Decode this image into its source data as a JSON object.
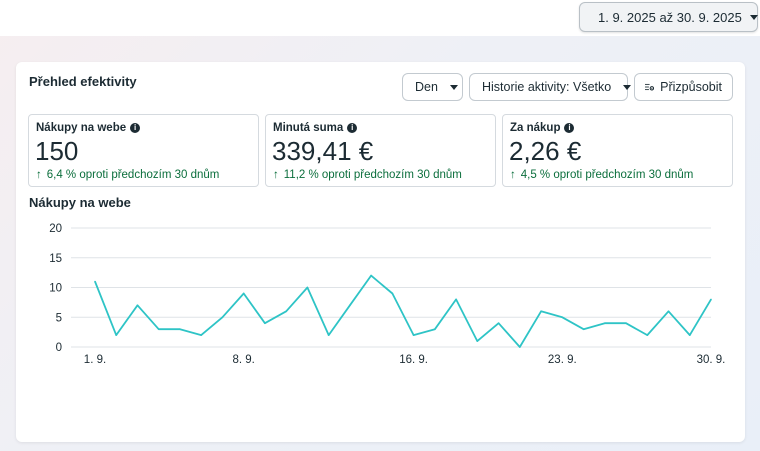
{
  "date_range": {
    "label": "1. 9. 2025 až 30. 9. 2025"
  },
  "panel": {
    "title": "Přehled efektivity",
    "granularity": "Den",
    "history_filter": "Historie aktivity: Všetko",
    "customize_label": "Přizpůsobit"
  },
  "metrics": [
    {
      "label": "Nákupy na webe",
      "value": "150",
      "delta": "6,4 % oproti předchozím 30 dnům"
    },
    {
      "label": "Minutá suma",
      "value": "339,41 €",
      "delta": "11,2 % oproti předchozím 30 dnům"
    },
    {
      "label": "Za nákup",
      "value": "2,26 €",
      "delta": "4,5 % oproti předchozím 30 dnům"
    }
  ],
  "colors": {
    "line": "#2ec4c6",
    "positive": "#0b6e3c",
    "grid": "#dfe3e7"
  },
  "chart_data": {
    "type": "line",
    "title": "Nákupy na webe",
    "x": [
      "1. 9.",
      "2. 9.",
      "3. 9.",
      "4. 9.",
      "5. 9.",
      "6. 9.",
      "7. 9.",
      "8. 9.",
      "9. 9.",
      "10. 9.",
      "11. 9.",
      "12. 9.",
      "13. 9.",
      "14. 9.",
      "15. 9.",
      "16. 9.",
      "17. 9.",
      "18. 9.",
      "19. 9.",
      "20. 9.",
      "21. 9.",
      "22. 9.",
      "23. 9.",
      "24. 9.",
      "25. 9.",
      "26. 9.",
      "27. 9.",
      "28. 9.",
      "29. 9.",
      "30. 9."
    ],
    "xticks": [
      "1. 9.",
      "8. 9.",
      "16. 9.",
      "23. 9.",
      "30. 9."
    ],
    "series": [
      {
        "values": [
          11,
          2,
          7,
          3,
          3,
          2,
          5,
          9,
          4,
          6,
          10,
          2,
          7,
          12,
          9,
          2,
          3,
          8,
          1,
          4,
          0,
          6,
          5,
          3,
          4,
          4,
          2,
          6,
          2,
          8
        ]
      }
    ],
    "ylim": [
      0,
      20
    ],
    "yticks": [
      0,
      5,
      10,
      15,
      20
    ],
    "grid": true
  }
}
